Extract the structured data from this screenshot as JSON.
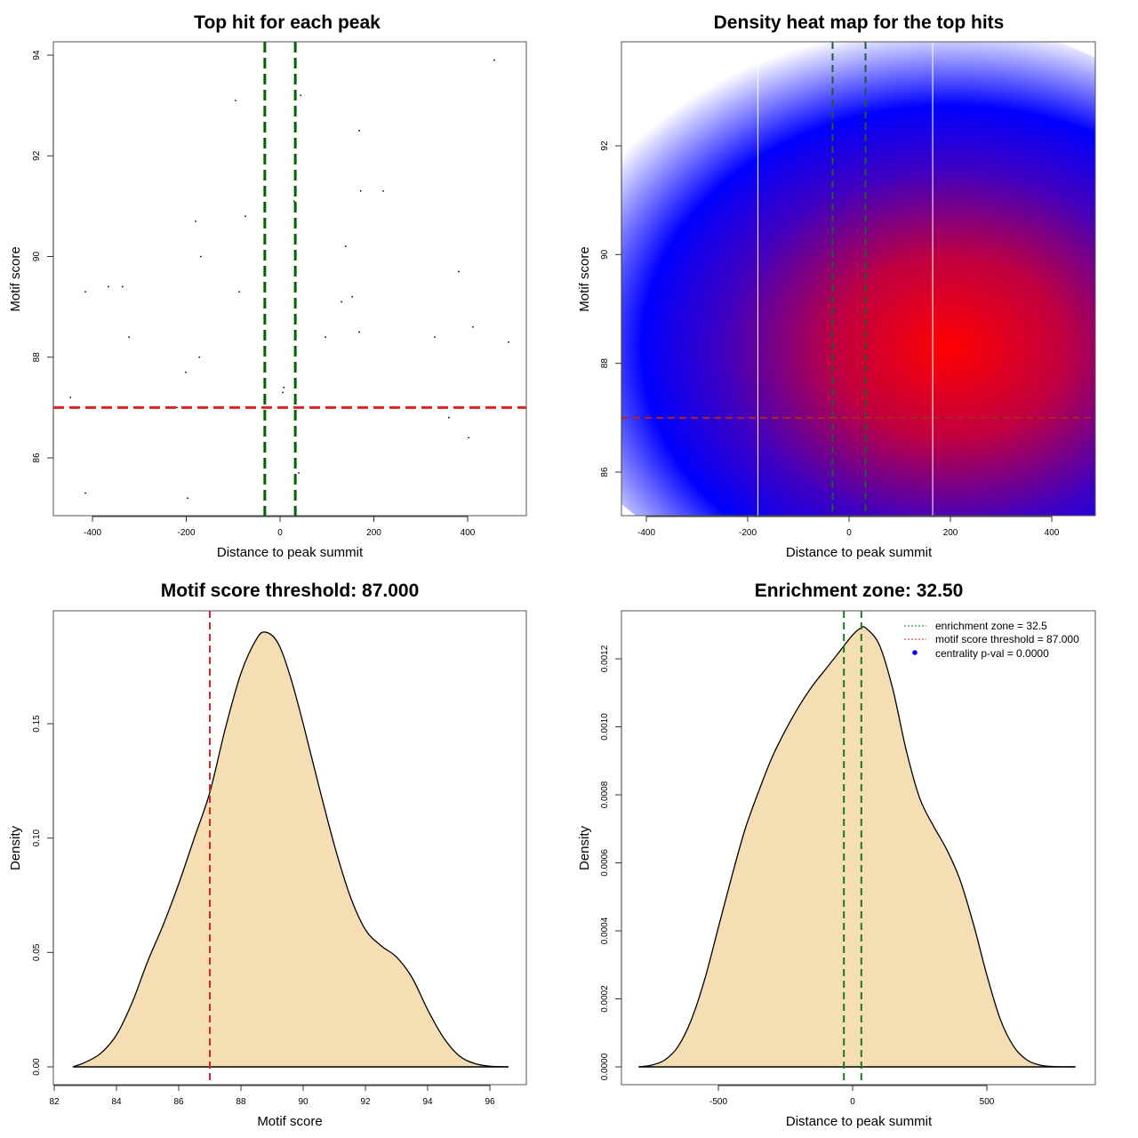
{
  "colors": {
    "enrichment_line": "#006400",
    "threshold_line": "#dd2222",
    "density_fill": "#f5deb3",
    "heat_low": "#ffffff",
    "heat_mid": "#0000ff",
    "heat_high": "#ff0000",
    "legend_point": "#0000ff"
  },
  "chart_data": [
    {
      "id": "scatter",
      "type": "scatter",
      "title": "Top hit for each peak",
      "xlabel": "Distance to peak summit",
      "ylabel": "Motif score",
      "xlim": [
        -480,
        530
      ],
      "ylim": [
        84.8,
        94.25
      ],
      "xticks": [
        -400,
        -200,
        0,
        200,
        400
      ],
      "yticks": [
        86,
        88,
        90,
        92,
        94
      ],
      "vlines": [
        -32.5,
        32.5
      ],
      "hline": 87.0,
      "points": [
        {
          "x": 457,
          "y": 93.9
        },
        {
          "x": -95,
          "y": 93.1
        },
        {
          "x": 44,
          "y": 93.2
        },
        {
          "x": 169,
          "y": 92.5
        },
        {
          "x": 172,
          "y": 91.3
        },
        {
          "x": 220,
          "y": 91.3
        },
        {
          "x": 30,
          "y": 91.1
        },
        {
          "x": -74,
          "y": 90.8
        },
        {
          "x": -180,
          "y": 90.7
        },
        {
          "x": 140,
          "y": 90.2
        },
        {
          "x": -169,
          "y": 90.0
        },
        {
          "x": 381,
          "y": 89.7
        },
        {
          "x": -415,
          "y": 89.3
        },
        {
          "x": -366,
          "y": 89.4
        },
        {
          "x": -336,
          "y": 89.4
        },
        {
          "x": -87,
          "y": 89.3
        },
        {
          "x": 131,
          "y": 89.1
        },
        {
          "x": 154,
          "y": 89.2
        },
        {
          "x": -322,
          "y": 88.4
        },
        {
          "x": 97,
          "y": 88.4
        },
        {
          "x": 330,
          "y": 88.4
        },
        {
          "x": 411,
          "y": 88.6
        },
        {
          "x": 487,
          "y": 88.3
        },
        {
          "x": 169,
          "y": 88.5
        },
        {
          "x": -172,
          "y": 88.0
        },
        {
          "x": -201,
          "y": 87.7
        },
        {
          "x": 8,
          "y": 87.4
        },
        {
          "x": 6,
          "y": 87.3
        },
        {
          "x": -447,
          "y": 87.2
        },
        {
          "x": -220,
          "y": 87.0
        },
        {
          "x": 360,
          "y": 86.8
        },
        {
          "x": 402,
          "y": 86.4
        },
        {
          "x": 40,
          "y": 85.7
        },
        {
          "x": -415,
          "y": 85.3
        },
        {
          "x": -197,
          "y": 85.2
        }
      ]
    },
    {
      "id": "heatmap",
      "type": "heatmap",
      "title": "Density heat map for the top hits",
      "xlabel": "Distance to peak summit",
      "ylabel": "Motif score",
      "xlim": [
        -447,
        487
      ],
      "ylim": [
        85.2,
        93.9
      ],
      "xticks": [
        -400,
        -200,
        0,
        200,
        400
      ],
      "yticks": [
        86,
        88,
        90,
        92
      ],
      "vlines": [
        -32.5,
        32.5
      ],
      "white_vlines": [
        -180,
        165
      ],
      "hline": 87.0,
      "density_peak": {
        "x": 90,
        "y": 89.0
      },
      "color_scale": [
        "white",
        "blue",
        "red"
      ]
    },
    {
      "id": "score-density",
      "type": "area",
      "title": "Motif score threshold: 87.000",
      "xlabel": "Motif score",
      "ylabel": "Density",
      "xlim": [
        82,
        97
      ],
      "ylim": [
        -0.007,
        0.197
      ],
      "xticks": [
        82,
        84,
        86,
        88,
        90,
        92,
        94,
        96
      ],
      "yticks": [
        0.0,
        0.05,
        0.1,
        0.15
      ],
      "ytick_labels": [
        "0.00",
        "0.05",
        "0.10",
        "0.15"
      ],
      "vline": 87.0,
      "x": [
        82.6,
        83.0,
        83.5,
        84.0,
        84.5,
        85.0,
        85.5,
        86.0,
        86.5,
        87.0,
        87.5,
        88.0,
        88.5,
        88.8,
        89.2,
        89.6,
        90.0,
        90.5,
        91.0,
        91.5,
        92.0,
        92.5,
        93.0,
        93.5,
        94.0,
        94.5,
        95.0,
        95.5,
        96.0,
        96.6
      ],
      "y": [
        0.0,
        0.002,
        0.006,
        0.014,
        0.028,
        0.046,
        0.062,
        0.08,
        0.1,
        0.12,
        0.148,
        0.172,
        0.187,
        0.19,
        0.185,
        0.17,
        0.15,
        0.123,
        0.097,
        0.075,
        0.06,
        0.053,
        0.048,
        0.039,
        0.025,
        0.013,
        0.005,
        0.0015,
        0.0003,
        0.0
      ],
      "fill": true
    },
    {
      "id": "distance-density",
      "type": "area",
      "title": "Enrichment zone: 32.50",
      "xlabel": "Distance to peak summit",
      "ylabel": "Density",
      "xlim": [
        -860,
        900
      ],
      "ylim": [
        -5e-05,
        0.00134
      ],
      "xticks": [
        -500,
        0,
        500
      ],
      "yticks": [
        0.0,
        0.0002,
        0.0004,
        0.0006,
        0.0008,
        0.001,
        0.0012
      ],
      "ytick_labels": [
        "0.0000",
        "0.0002",
        "0.0004",
        "0.0006",
        "0.0008",
        "0.0010",
        "0.0012"
      ],
      "vlines": [
        -32.5,
        32.5
      ],
      "x": [
        -797,
        -750,
        -700,
        -650,
        -600,
        -550,
        -500,
        -450,
        -400,
        -350,
        -300,
        -250,
        -200,
        -150,
        -100,
        -50,
        0,
        30,
        50,
        100,
        150,
        200,
        250,
        300,
        350,
        400,
        450,
        500,
        550,
        600,
        650,
        700,
        750,
        830
      ],
      "y": [
        0.0,
        5e-06,
        2e-05,
        6e-05,
        0.00014,
        0.00026,
        0.00041,
        0.00056,
        0.0007,
        0.00081,
        0.00091,
        0.00099,
        0.00106,
        0.00112,
        0.00117,
        0.00122,
        0.00127,
        0.00129,
        0.00129,
        0.00124,
        0.00111,
        0.00093,
        0.00079,
        0.00071,
        0.00064,
        0.00055,
        0.00042,
        0.00027,
        0.00014,
        6e-05,
        2e-05,
        5e-06,
        1e-06,
        0.0
      ],
      "fill": true,
      "legend": {
        "position": "top-right",
        "entries": [
          {
            "label": "enrichment zone = 32.5",
            "style": "dotted-line",
            "color": "#006400"
          },
          {
            "label": "motif score threshold = 87.000",
            "style": "dotted-line",
            "color": "#dd2222"
          },
          {
            "label": "centrality p-val = 0.0000",
            "style": "point",
            "color": "#0000ff"
          }
        ]
      }
    }
  ]
}
